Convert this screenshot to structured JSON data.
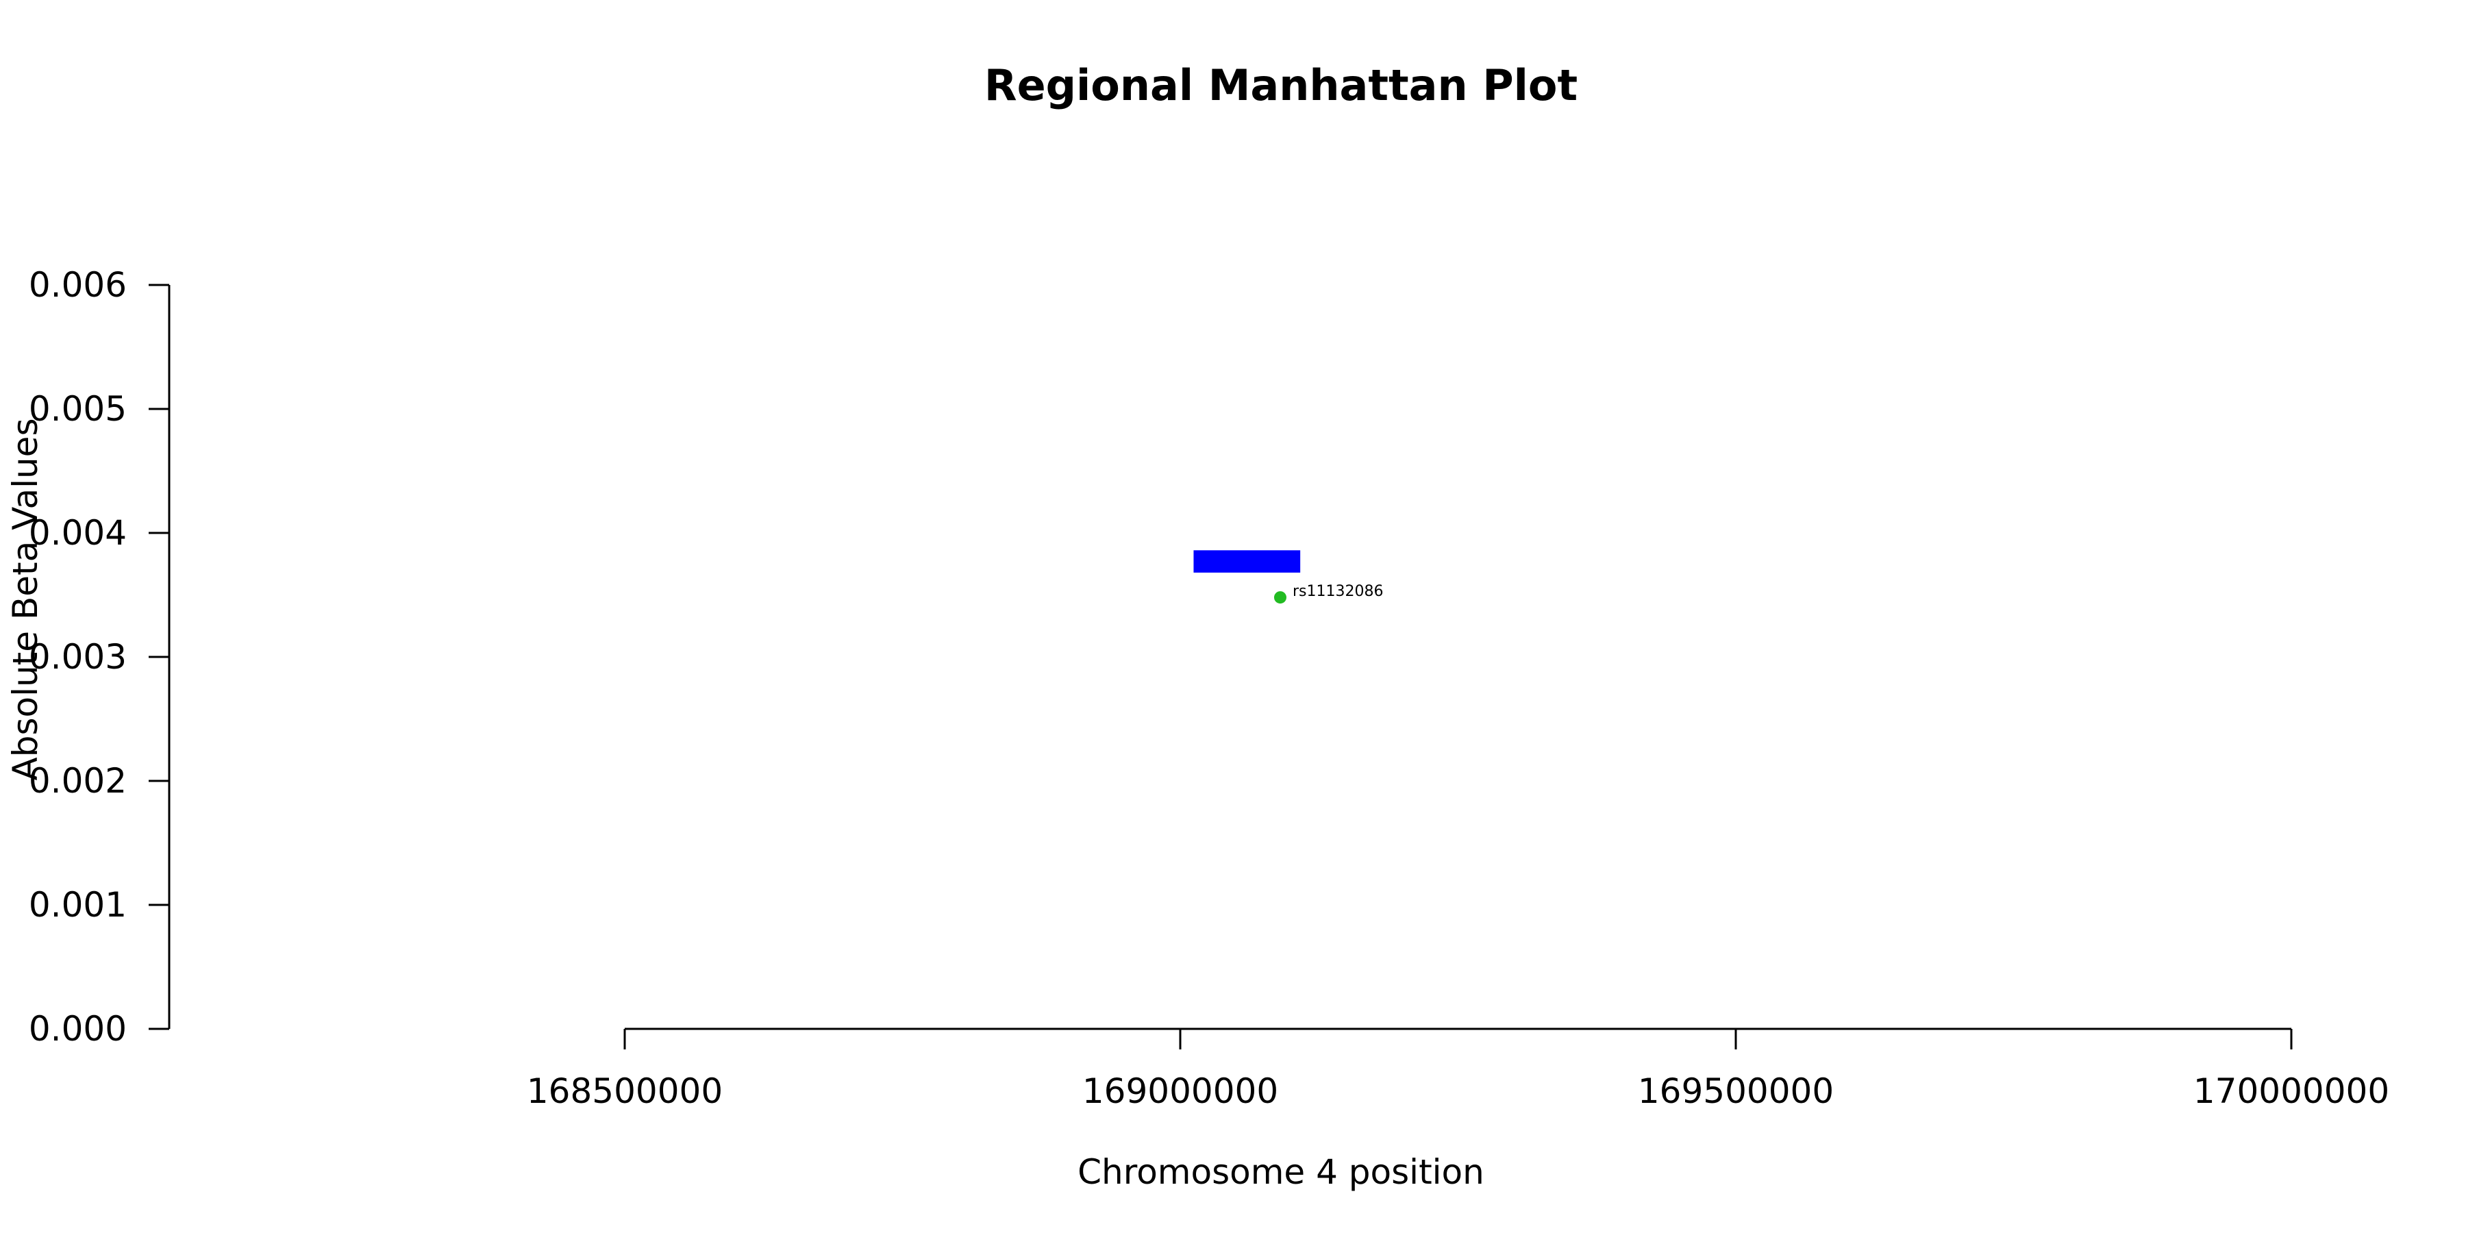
{
  "chart_data": {
    "type": "scatter",
    "title": "Regional Manhattan Plot",
    "xlabel": "Chromosome 4 position",
    "ylabel": "Absolute Beta Values",
    "xlim": [
      168500000,
      170000000
    ],
    "ylim": [
      0.0,
      0.006
    ],
    "x_ticks": [
      168500000,
      169000000,
      169500000,
      170000000
    ],
    "x_tick_labels": [
      "168500000",
      "169000000",
      "169500000",
      "170000000"
    ],
    "y_ticks": [
      0.0,
      0.001,
      0.002,
      0.003,
      0.004,
      0.005,
      0.006
    ],
    "y_tick_labels": [
      "0.000",
      "0.001",
      "0.002",
      "0.003",
      "0.004",
      "0.005",
      "0.006"
    ],
    "grid": false,
    "points": [
      {
        "label": "rs11132086",
        "x": 169090000,
        "y": 0.00348,
        "color": "#22bb22"
      }
    ],
    "gene_bar": {
      "x_start": 169012000,
      "x_end": 169108000,
      "y_low": 0.00368,
      "y_high": 0.00386,
      "color": "#0000ff"
    }
  }
}
